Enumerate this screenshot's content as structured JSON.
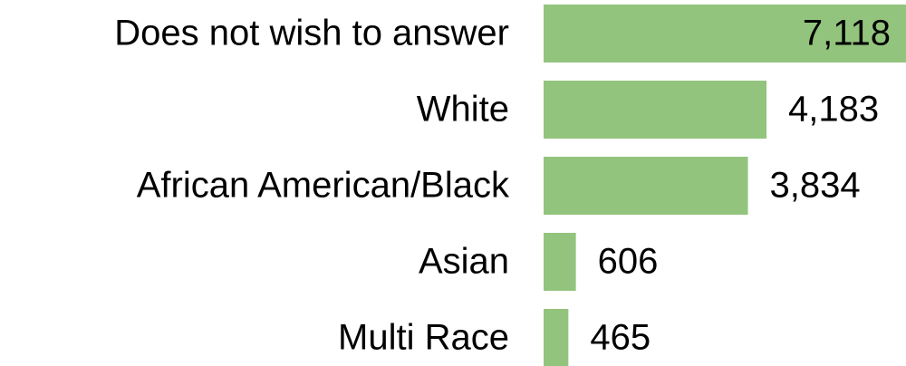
{
  "chart_data": {
    "type": "bar",
    "orientation": "horizontal",
    "categories": [
      "Does not wish to answer",
      "White",
      "African American/Black",
      "Asian",
      "Multi Race"
    ],
    "values": [
      7118,
      4183,
      3834,
      606,
      465
    ],
    "value_labels": [
      "7,118",
      "4,183",
      "3,834",
      "606",
      "465"
    ],
    "color": "#93c47d",
    "xlim": [
      0,
      6800
    ]
  }
}
